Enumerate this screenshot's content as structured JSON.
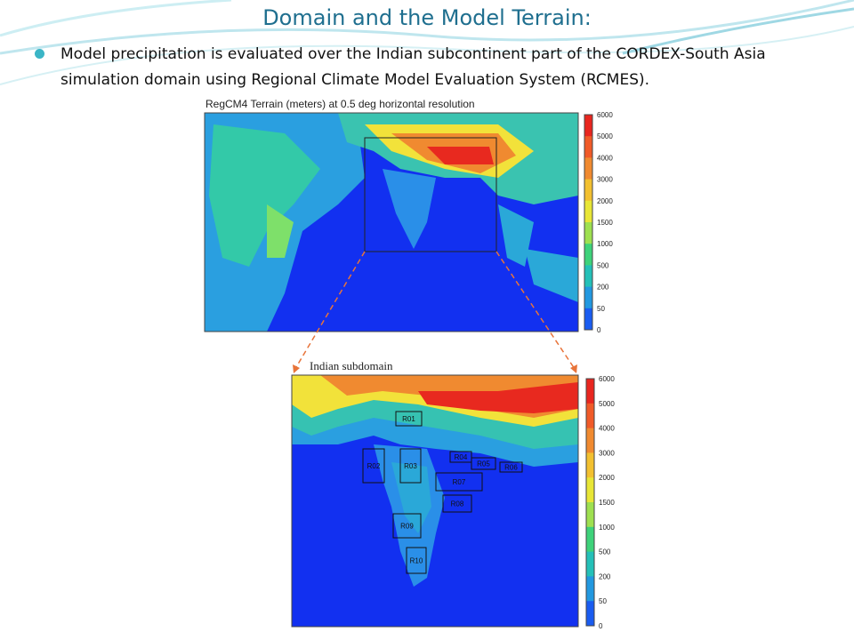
{
  "slide": {
    "title": "Domain and the Model Terrain:",
    "bullet": "Model precipitation is evaluated over the Indian subcontinent part of the CORDEX-South Asia simulation domain using Regional Climate Model Evaluation System (RCMES).",
    "map1": {
      "title": "RegCM4 Terrain (meters) at 0.5 deg horizontal resolution",
      "colorbar_labels": [
        "6000",
        "5000",
        "4000",
        "3000",
        "2000",
        "1500",
        "1000",
        "500",
        "200",
        "50",
        "0"
      ]
    },
    "map2": {
      "label": "Indian subdomain",
      "colorbar_labels": [
        "6000",
        "5000",
        "4000",
        "3000",
        "2000",
        "1500",
        "1000",
        "500",
        "200",
        "50",
        "0"
      ],
      "regions": [
        "R01",
        "R02",
        "R03",
        "R04",
        "R05",
        "R06",
        "R07",
        "R08",
        "R09",
        "R10"
      ]
    }
  }
}
